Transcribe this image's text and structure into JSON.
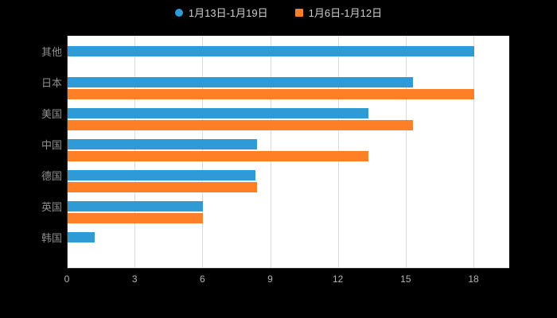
{
  "legend": {
    "series1_label": "1月13日-1月19日",
    "series2_label": "1月6日-1月12日"
  },
  "chart_data": {
    "type": "bar",
    "orientation": "horizontal",
    "title": "",
    "xlabel": "",
    "ylabel": "",
    "categories": [
      "其他",
      "日本",
      "美国",
      "中国",
      "德国",
      "英国",
      "韩国"
    ],
    "series": [
      {
        "name": "1月13日-1月19日",
        "color": "#2e9bd6",
        "values": [
          18,
          15.3,
          13.3,
          8.4,
          8.3,
          6,
          1.2
        ]
      },
      {
        "name": "1月6日-1月12日",
        "color": "#ff7f27",
        "values": [
          0,
          18,
          15.3,
          13.3,
          8.4,
          6,
          0
        ]
      }
    ],
    "xlim": [
      0,
      18
    ],
    "x_ticks": [
      "0",
      "3",
      "6",
      "9",
      "12",
      "15",
      "18"
    ],
    "grid": "vertical",
    "legend_position": "top-center",
    "plot_background": "#ffffff",
    "page_background": "#000000"
  }
}
